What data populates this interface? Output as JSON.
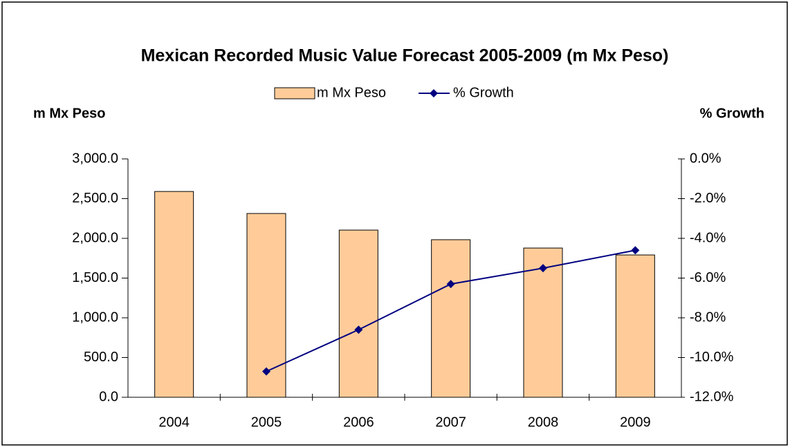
{
  "chart_data": {
    "type": "bar",
    "title": "Mexican Recorded Music Value Forecast 2005-2009 (m Mx Peso)",
    "ylabel": "m Mx Peso",
    "y2label": "% Growth",
    "categories": [
      "2004",
      "2005",
      "2006",
      "2007",
      "2008",
      "2009"
    ],
    "series": [
      {
        "name": "m Mx Peso",
        "type": "bar",
        "color": "#ffcc99",
        "values": [
          2590,
          2313,
          2104,
          1983,
          1878,
          1791
        ]
      },
      {
        "name": "% Growth",
        "type": "line",
        "axis": "y2",
        "color": "#000080",
        "values": [
          null,
          -10.7,
          -8.6,
          -6.3,
          -5.5,
          -4.6
        ]
      }
    ],
    "ylim": [
      0,
      3000
    ],
    "yticks": [
      {
        "value": 0,
        "label": "0.0"
      },
      {
        "value": 500,
        "label": "500.0"
      },
      {
        "value": 1000,
        "label": "1,000.0"
      },
      {
        "value": 1500,
        "label": "1,500.0"
      },
      {
        "value": 2000,
        "label": "2,000.0"
      },
      {
        "value": 2500,
        "label": "2,500.0"
      },
      {
        "value": 3000,
        "label": "3,000.0"
      }
    ],
    "y2lim": [
      -12,
      0
    ],
    "y2ticks": [
      {
        "value": -12,
        "label": "-12.0%"
      },
      {
        "value": -10,
        "label": "-10.0%"
      },
      {
        "value": -8,
        "label": "-8.0%"
      },
      {
        "value": -6,
        "label": "-6.0%"
      },
      {
        "value": -4,
        "label": "-4.0%"
      },
      {
        "value": -2,
        "label": "-2.0%"
      },
      {
        "value": 0,
        "label": "0.0%"
      }
    ],
    "legend": "top"
  }
}
